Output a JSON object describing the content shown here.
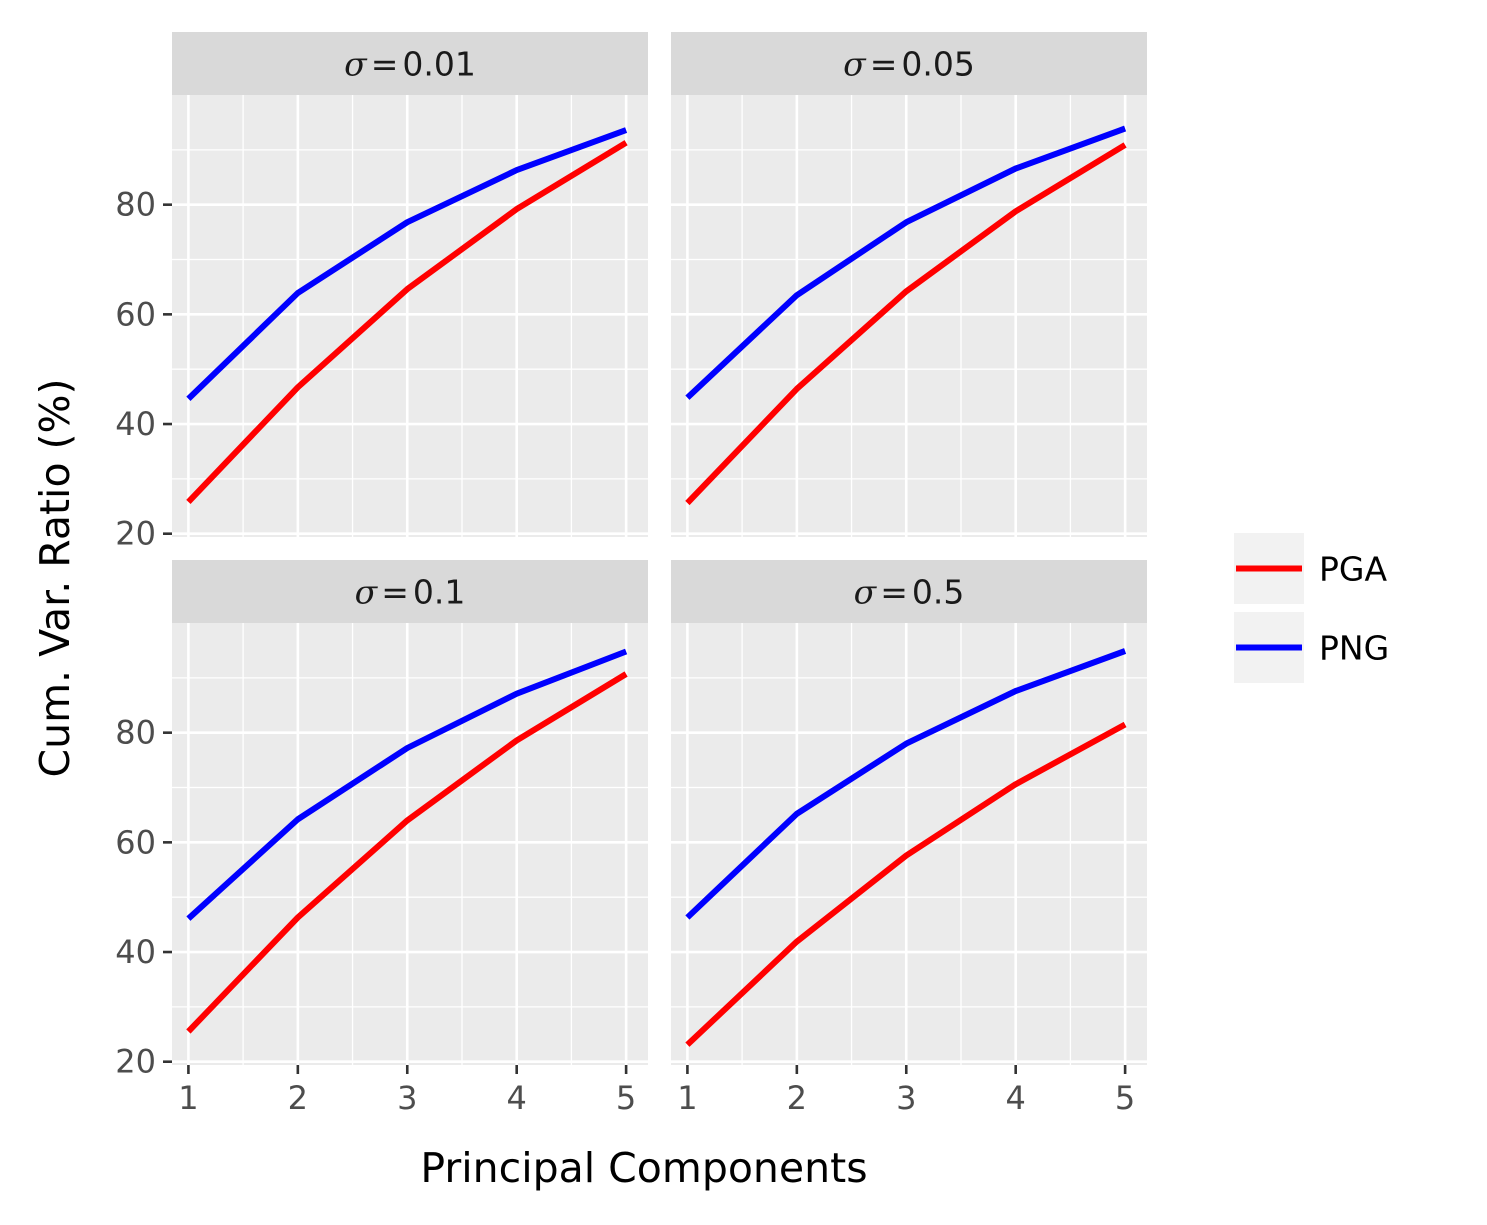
{
  "chart_data": {
    "type": "line",
    "facet_layout": "2x2",
    "xlabel": "Principal Components",
    "ylabel": "Cum. Var. Ratio (%)",
    "xlim": [
      0.85,
      5.2
    ],
    "ylim": [
      19.4,
      100
    ],
    "x_ticks": [
      1,
      2,
      3,
      4,
      5
    ],
    "y_ticks": [
      20,
      40,
      60,
      80
    ],
    "grid": true,
    "legend_position": "right",
    "legend": [
      {
        "name": "PGA",
        "color": "#ff0000"
      },
      {
        "name": "PNG",
        "color": "#0000ff"
      }
    ],
    "panels": [
      {
        "symbol": "σ",
        "eq": "=",
        "value": "0.01",
        "series": [
          {
            "name": "PGA",
            "color": "#ff0000",
            "x": [
              1,
              2,
              3,
              4,
              5
            ],
            "values": [
              25.8,
              46.7,
              64.6,
              79.2,
              91.3
            ]
          },
          {
            "name": "PNG",
            "color": "#0000ff",
            "x": [
              1,
              2,
              3,
              4,
              5
            ],
            "values": [
              44.6,
              63.9,
              76.8,
              86.3,
              93.6
            ]
          }
        ]
      },
      {
        "symbol": "σ",
        "eq": "=",
        "value": "0.05",
        "series": [
          {
            "name": "PGA",
            "color": "#ff0000",
            "x": [
              1,
              2,
              3,
              4,
              5
            ],
            "values": [
              25.6,
              46.4,
              64.2,
              78.8,
              90.9
            ]
          },
          {
            "name": "PNG",
            "color": "#0000ff",
            "x": [
              1,
              2,
              3,
              4,
              5
            ],
            "values": [
              44.8,
              63.5,
              76.8,
              86.6,
              93.9
            ]
          }
        ]
      },
      {
        "symbol": "σ",
        "eq": "=",
        "value": "0.1",
        "series": [
          {
            "name": "PGA",
            "color": "#ff0000",
            "x": [
              1,
              2,
              3,
              4,
              5
            ],
            "values": [
              25.5,
              46.3,
              64.0,
              78.6,
              90.7
            ]
          },
          {
            "name": "PNG",
            "color": "#0000ff",
            "x": [
              1,
              2,
              3,
              4,
              5
            ],
            "values": [
              46.1,
              64.2,
              77.2,
              87.1,
              94.8
            ]
          }
        ]
      },
      {
        "symbol": "σ",
        "eq": "=",
        "value": "0.5",
        "series": [
          {
            "name": "PGA",
            "color": "#ff0000",
            "x": [
              1,
              2,
              3,
              4,
              5
            ],
            "values": [
              23.1,
              41.9,
              57.6,
              70.6,
              81.5
            ]
          },
          {
            "name": "PNG",
            "color": "#0000ff",
            "x": [
              1,
              2,
              3,
              4,
              5
            ],
            "values": [
              46.3,
              65.2,
              78.0,
              87.6,
              94.9
            ]
          }
        ]
      }
    ]
  }
}
